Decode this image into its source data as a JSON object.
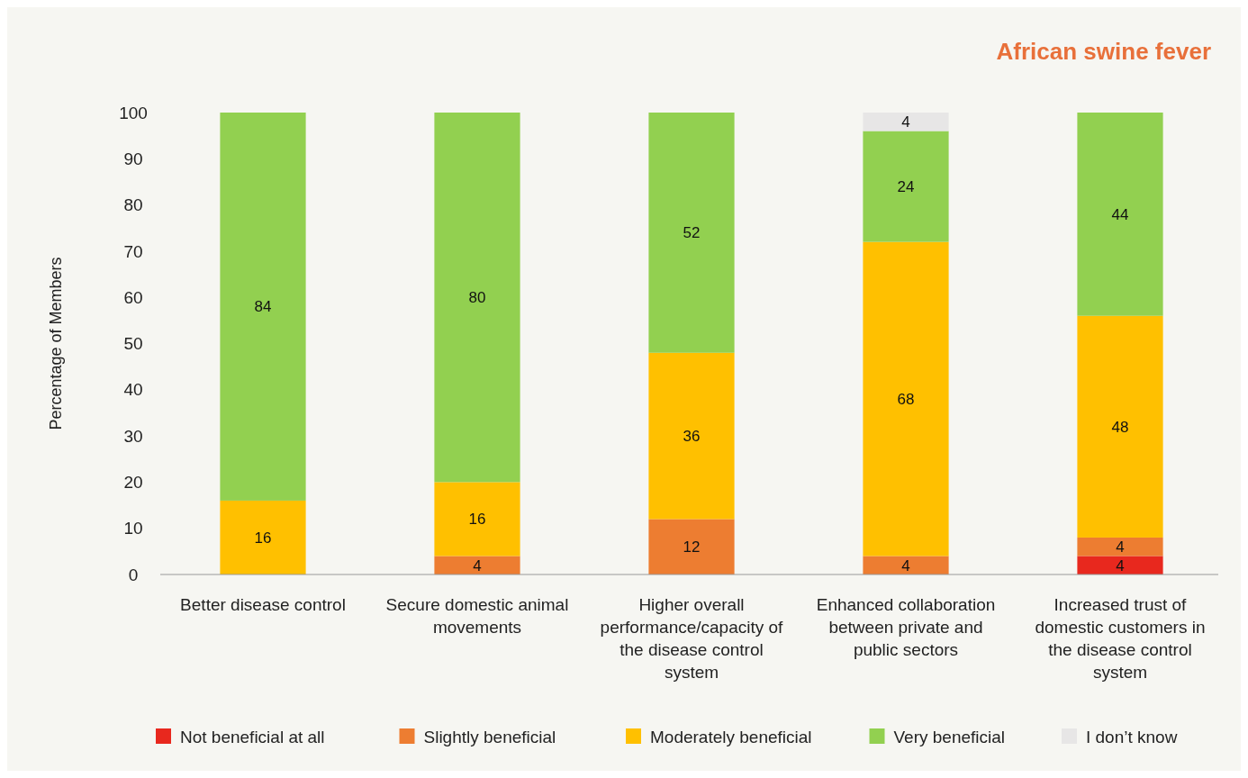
{
  "chart_data": {
    "type": "bar",
    "title": "African swine fever",
    "ylabel": "Percentage of Members",
    "categories": [
      "Better disease control",
      "Secure domestic animal movements",
      "Higher overall performance/capacity of the disease control system",
      "Enhanced collaboration between private and public sectors",
      "Increased trust of domestic customers in the disease control system"
    ],
    "stacked": true,
    "data_labels": true,
    "legend": "bottom",
    "grid": false,
    "ylim": [
      0,
      100
    ],
    "yticks": [
      0,
      10,
      20,
      30,
      40,
      50,
      60,
      70,
      80,
      90,
      100
    ],
    "series": [
      {
        "name": "Not beneficial at all",
        "color": "#e8281e",
        "values": [
          null,
          null,
          null,
          null,
          4
        ]
      },
      {
        "name": "Slightly beneficial",
        "color": "#ed7d31",
        "values": [
          null,
          4,
          12,
          4,
          4
        ]
      },
      {
        "name": "Moderately beneficial",
        "color": "#ffc000",
        "values": [
          16,
          16,
          36,
          68,
          48
        ]
      },
      {
        "name": "Very beneficial",
        "color": "#92d050",
        "values": [
          84,
          80,
          52,
          24,
          44
        ]
      },
      {
        "name": "I don’t know",
        "color": "#e7e6e6",
        "values": [
          null,
          null,
          null,
          4,
          null
        ]
      }
    ]
  }
}
